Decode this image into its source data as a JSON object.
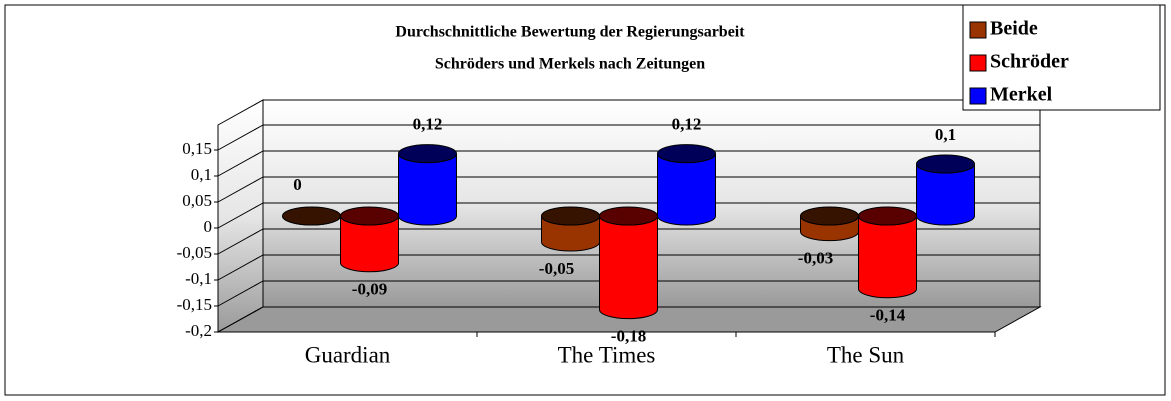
{
  "chart_data": {
    "type": "bar3d",
    "title": [
      "Durchschnittliche Bewertung der Regierungsarbeit",
      "Schröders und Merkels nach Zeitungen"
    ],
    "categories": [
      "Guardian",
      "The Times",
      "The Sun"
    ],
    "series": [
      {
        "name": "Beide",
        "color": "#993300",
        "values": [
          0,
          -0.05,
          -0.03
        ],
        "value_labels": [
          "0",
          "-0,05",
          "-0,03"
        ]
      },
      {
        "name": "Schröder",
        "color": "#ff0000",
        "values": [
          -0.09,
          -0.18,
          -0.14
        ],
        "value_labels": [
          "-0,09",
          "-0,18",
          "-0,14"
        ]
      },
      {
        "name": "Merkel",
        "color": "#0000ff",
        "values": [
          0.12,
          0.12,
          0.1
        ],
        "value_labels": [
          "0,12",
          "0,12",
          "0,1"
        ]
      }
    ],
    "ylim": [
      -0.2,
      0.15
    ],
    "yticks": [
      {
        "value": 0.15,
        "label": "0,15"
      },
      {
        "value": 0.1,
        "label": "0,1"
      },
      {
        "value": 0.05,
        "label": "0,05"
      },
      0,
      {
        "value": -0.05,
        "label": "-0,05"
      },
      {
        "value": -0.1,
        "label": "-0,1"
      },
      {
        "value": -0.15,
        "label": "-0,15"
      },
      {
        "value": -0.2,
        "label": "-0,2"
      }
    ],
    "grid": true,
    "legend": "top-right"
  }
}
